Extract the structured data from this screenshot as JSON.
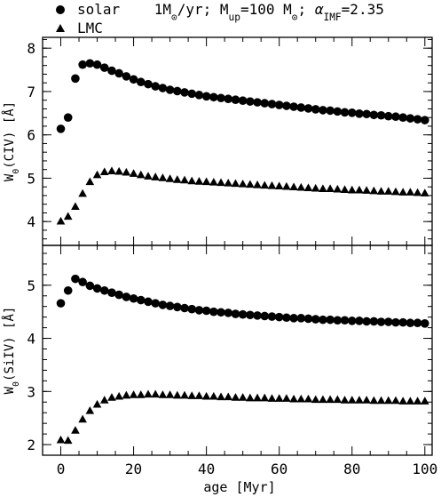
{
  "legend": {
    "entries": [
      {
        "symbol": "circle",
        "label_parts": [
          {
            "t": "solar    1M"
          },
          {
            "t": "⊙",
            "sub": true
          },
          {
            "t": "/yr; M"
          },
          {
            "t": "up",
            "sub": true
          },
          {
            "t": "=100 M"
          },
          {
            "t": "⊙",
            "sub": true
          },
          {
            "t": "; "
          },
          {
            "t": "α",
            "italic": true
          },
          {
            "t": "IMF",
            "sub": true
          },
          {
            "t": "=2.35"
          }
        ]
      },
      {
        "symbol": "triangle",
        "label_parts": [
          {
            "t": "LMC"
          }
        ]
      }
    ]
  },
  "chart_data": [
    {
      "type": "scatter",
      "ylabel": "W",
      "ylabel_parts": [
        {
          "t": "W"
        },
        {
          "t": "0",
          "sub": true
        },
        {
          "t": "(CIV) [Å]"
        }
      ],
      "xlabel": "",
      "xlim": [
        -5,
        102
      ],
      "ylim": [
        3.45,
        8.25
      ],
      "yticks": [
        4,
        5,
        6,
        7,
        8
      ],
      "series": [
        {
          "name": "solar",
          "marker": "circle",
          "x": [
            0,
            2,
            4,
            6,
            8,
            10,
            12,
            14,
            16,
            18,
            20,
            22,
            24,
            26,
            28,
            30,
            32,
            34,
            36,
            38,
            40,
            42,
            44,
            46,
            48,
            50,
            52,
            54,
            56,
            58,
            60,
            62,
            64,
            66,
            68,
            70,
            72,
            74,
            76,
            78,
            80,
            82,
            84,
            86,
            88,
            90,
            92,
            94,
            96,
            98,
            100
          ],
          "y": [
            6.14,
            6.4,
            7.3,
            7.62,
            7.65,
            7.62,
            7.55,
            7.48,
            7.42,
            7.35,
            7.28,
            7.22,
            7.17,
            7.12,
            7.08,
            7.04,
            7.01,
            6.98,
            6.95,
            6.92,
            6.89,
            6.87,
            6.85,
            6.83,
            6.81,
            6.79,
            6.77,
            6.75,
            6.73,
            6.71,
            6.69,
            6.67,
            6.65,
            6.63,
            6.61,
            6.59,
            6.57,
            6.56,
            6.54,
            6.52,
            6.51,
            6.49,
            6.48,
            6.46,
            6.45,
            6.43,
            6.42,
            6.4,
            6.38,
            6.36,
            6.34
          ]
        },
        {
          "name": "LMC",
          "marker": "triangle",
          "x": [
            0,
            2,
            4,
            6,
            8,
            10,
            12,
            14,
            16,
            18,
            20,
            22,
            24,
            26,
            28,
            30,
            32,
            34,
            36,
            38,
            40,
            42,
            44,
            46,
            48,
            50,
            52,
            54,
            56,
            58,
            60,
            62,
            64,
            66,
            68,
            70,
            72,
            74,
            76,
            78,
            80,
            82,
            84,
            86,
            88,
            90,
            92,
            94,
            96,
            98,
            100
          ],
          "y": [
            4.01,
            4.12,
            4.35,
            4.65,
            4.92,
            5.08,
            5.15,
            5.17,
            5.16,
            5.14,
            5.11,
            5.08,
            5.05,
            5.03,
            5.01,
            4.99,
            4.97,
            4.96,
            4.94,
            4.93,
            4.92,
            4.91,
            4.9,
            4.89,
            4.88,
            4.87,
            4.86,
            4.85,
            4.84,
            4.83,
            4.82,
            4.81,
            4.8,
            4.79,
            4.78,
            4.77,
            4.76,
            4.76,
            4.75,
            4.74,
            4.73,
            4.73,
            4.72,
            4.71,
            4.7,
            4.7,
            4.69,
            4.68,
            4.68,
            4.67,
            4.66
          ]
        }
      ]
    },
    {
      "type": "scatter",
      "ylabel": "W",
      "ylabel_parts": [
        {
          "t": "W"
        },
        {
          "t": "0",
          "sub": true
        },
        {
          "t": "(SiIV) [Å]"
        }
      ],
      "xlabel": "age [Myr]",
      "xlim": [
        -5,
        102
      ],
      "ylim": [
        1.8,
        5.75
      ],
      "yticks": [
        2,
        3,
        4,
        5
      ],
      "xticks": [
        0,
        20,
        40,
        60,
        80,
        100
      ],
      "series": [
        {
          "name": "solar",
          "marker": "circle",
          "x": [
            0,
            2,
            4,
            6,
            8,
            10,
            12,
            14,
            16,
            18,
            20,
            22,
            24,
            26,
            28,
            30,
            32,
            34,
            36,
            38,
            40,
            42,
            44,
            46,
            48,
            50,
            52,
            54,
            56,
            58,
            60,
            62,
            64,
            66,
            68,
            70,
            72,
            74,
            76,
            78,
            80,
            82,
            84,
            86,
            88,
            90,
            92,
            94,
            96,
            98,
            100
          ],
          "y": [
            4.66,
            4.9,
            5.12,
            5.06,
            4.99,
            4.94,
            4.9,
            4.86,
            4.82,
            4.78,
            4.75,
            4.72,
            4.69,
            4.66,
            4.63,
            4.61,
            4.59,
            4.57,
            4.55,
            4.53,
            4.52,
            4.5,
            4.49,
            4.48,
            4.46,
            4.45,
            4.44,
            4.43,
            4.42,
            4.41,
            4.4,
            4.39,
            4.38,
            4.38,
            4.37,
            4.36,
            4.35,
            4.35,
            4.34,
            4.34,
            4.33,
            4.33,
            4.32,
            4.32,
            4.31,
            4.31,
            4.3,
            4.3,
            4.29,
            4.29,
            4.28
          ]
        },
        {
          "name": "LMC",
          "marker": "triangle",
          "x": [
            0,
            2,
            4,
            6,
            8,
            10,
            12,
            14,
            16,
            18,
            20,
            22,
            24,
            26,
            28,
            30,
            32,
            34,
            36,
            38,
            40,
            42,
            44,
            46,
            48,
            50,
            52,
            54,
            56,
            58,
            60,
            62,
            64,
            66,
            68,
            70,
            72,
            74,
            76,
            78,
            80,
            82,
            84,
            86,
            88,
            90,
            92,
            94,
            96,
            98,
            100
          ],
          "y": [
            2.09,
            2.08,
            2.27,
            2.48,
            2.64,
            2.76,
            2.84,
            2.89,
            2.91,
            2.93,
            2.94,
            2.94,
            2.95,
            2.95,
            2.94,
            2.94,
            2.93,
            2.93,
            2.92,
            2.92,
            2.91,
            2.91,
            2.9,
            2.9,
            2.89,
            2.89,
            2.88,
            2.88,
            2.88,
            2.87,
            2.87,
            2.87,
            2.86,
            2.86,
            2.86,
            2.85,
            2.85,
            2.85,
            2.85,
            2.84,
            2.84,
            2.84,
            2.84,
            2.83,
            2.83,
            2.83,
            2.83,
            2.82,
            2.82,
            2.82,
            2.82
          ]
        }
      ]
    }
  ]
}
